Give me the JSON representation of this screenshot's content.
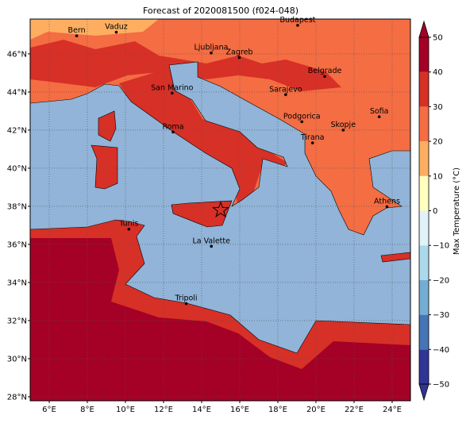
{
  "title": "Forecast of 2020081500 (f024-048)",
  "map": {
    "xlim": [
      5,
      24.96
    ],
    "ylim": [
      27.79,
      47.83
    ],
    "grid": true,
    "xticks": [
      {
        "value": 6,
        "label": "6°E"
      },
      {
        "value": 8,
        "label": "8°E"
      },
      {
        "value": 10,
        "label": "10°E"
      },
      {
        "value": 12,
        "label": "12°E"
      },
      {
        "value": 14,
        "label": "14°E"
      },
      {
        "value": 16,
        "label": "16°E"
      },
      {
        "value": 18,
        "label": "18°E"
      },
      {
        "value": 20,
        "label": "20°E"
      },
      {
        "value": 22,
        "label": "22°E"
      },
      {
        "value": 24,
        "label": "24°E"
      }
    ],
    "yticks": [
      {
        "value": 28,
        "label": "28°N"
      },
      {
        "value": 30,
        "label": "30°N"
      },
      {
        "value": 32,
        "label": "32°N"
      },
      {
        "value": 34,
        "label": "34°N"
      },
      {
        "value": 36,
        "label": "36°N"
      },
      {
        "value": 38,
        "label": "38°N"
      },
      {
        "value": 40,
        "label": "40°N"
      },
      {
        "value": 42,
        "label": "42°N"
      },
      {
        "value": 44,
        "label": "44°N"
      },
      {
        "value": 46,
        "label": "46°N"
      }
    ],
    "cities": [
      {
        "name": "Bern",
        "lon": 7.44,
        "lat": 46.95
      },
      {
        "name": "Vaduz",
        "lon": 9.52,
        "lat": 47.14
      },
      {
        "name": "Budapest",
        "lon": 19.04,
        "lat": 47.5
      },
      {
        "name": "Ljubljana",
        "lon": 14.5,
        "lat": 46.05
      },
      {
        "name": "Zagreb",
        "lon": 15.98,
        "lat": 45.81
      },
      {
        "name": "Belgrade",
        "lon": 20.46,
        "lat": 44.82
      },
      {
        "name": "Sarajevo",
        "lon": 18.41,
        "lat": 43.86
      },
      {
        "name": "San Marino",
        "lon": 12.45,
        "lat": 43.94
      },
      {
        "name": "Sofia",
        "lon": 23.32,
        "lat": 42.7
      },
      {
        "name": "Podgorica",
        "lon": 19.26,
        "lat": 42.44
      },
      {
        "name": "Skopje",
        "lon": 21.43,
        "lat": 42.0
      },
      {
        "name": "Roma",
        "lon": 12.5,
        "lat": 41.9
      },
      {
        "name": "Tirana",
        "lon": 19.82,
        "lat": 41.33
      },
      {
        "name": "Athens",
        "lon": 23.73,
        "lat": 37.98
      },
      {
        "name": "Tunis",
        "lon": 10.18,
        "lat": 36.8
      },
      {
        "name": "La Valette",
        "lon": 14.51,
        "lat": 35.9
      },
      {
        "name": "Tripoli",
        "lon": 13.19,
        "lat": 32.89
      }
    ],
    "marker": {
      "lon": 15.0,
      "lat": 37.8
    }
  },
  "colorbar": {
    "label": "Max Temperature (°C)",
    "lim": [
      -50,
      50
    ],
    "ticks": [
      50,
      40,
      30,
      20,
      10,
      0,
      {
        "value": -10,
        "label": "−10"
      },
      {
        "value": -20,
        "label": "−20"
      },
      {
        "value": -30,
        "label": "−30"
      },
      {
        "value": -40,
        "label": "−40"
      },
      {
        "value": -50,
        "label": "−50"
      }
    ],
    "colors": [
      "#313695",
      "#4575b4",
      "#74add1",
      "#abd9e9",
      "#e0f3f8",
      "#ffffbf",
      "#fdae61",
      "#f46d43",
      "#d73027",
      "#a50026"
    ]
  }
}
